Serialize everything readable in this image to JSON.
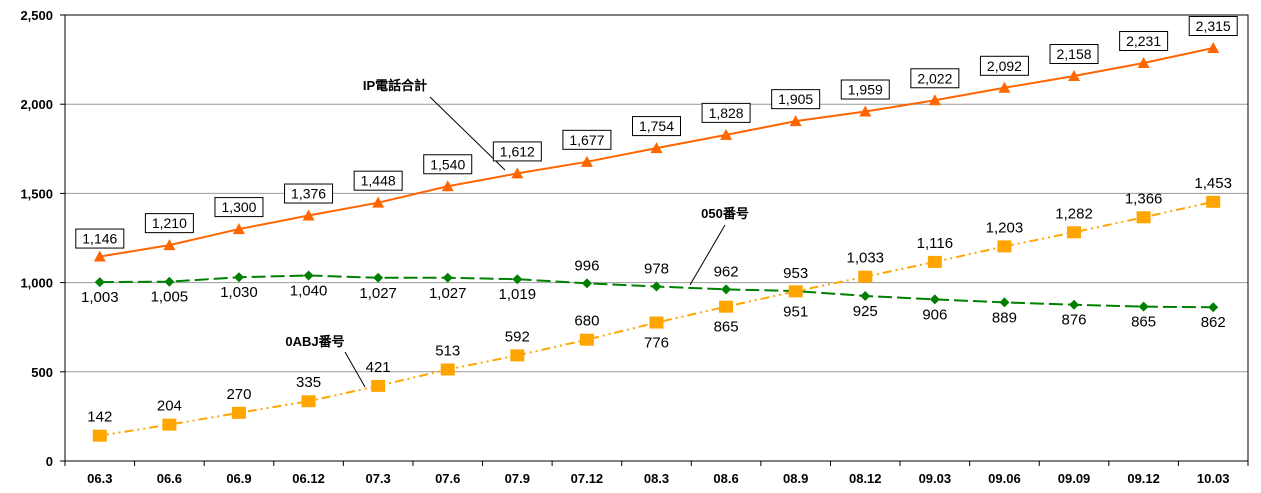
{
  "chart_data": {
    "type": "line",
    "categories": [
      "06.3",
      "06.6",
      "06.9",
      "06.12",
      "07.3",
      "07.6",
      "07.9",
      "07.12",
      "08.3",
      "08.6",
      "08.9",
      "08.12",
      "09.03",
      "09.06",
      "09.09",
      "09.12",
      "10.03"
    ],
    "ylim": [
      0,
      2500
    ],
    "yticks": [
      0,
      500,
      1000,
      1500,
      2000,
      2500
    ],
    "ytick_labels": [
      "0",
      "500",
      "1,000",
      "1,500",
      "2,000",
      "2,500"
    ],
    "grid": true,
    "series": [
      {
        "name": "IP電話合計",
        "color": "#ff6600",
        "marker": "triangle",
        "line_style": "solid",
        "values": [
          1146,
          1210,
          1300,
          1376,
          1448,
          1540,
          1612,
          1677,
          1754,
          1828,
          1905,
          1959,
          2022,
          2092,
          2158,
          2231,
          2315
        ],
        "labels": [
          "1,146",
          "1,210",
          "1,300",
          "1,376",
          "1,448",
          "1,540",
          "1,612",
          "1,677",
          "1,754",
          "1,828",
          "1,905",
          "1,959",
          "2,022",
          "2,092",
          "2,158",
          "2,231",
          "2,315"
        ]
      },
      {
        "name": "050番号",
        "color": "#008000",
        "marker": "diamond",
        "line_style": "dashed",
        "values": [
          1003,
          1005,
          1030,
          1040,
          1027,
          1027,
          1019,
          996,
          978,
          962,
          953,
          925,
          906,
          889,
          876,
          865,
          862
        ],
        "labels": [
          "1,003",
          "1,005",
          "1,030",
          "1,040",
          "1,027",
          "1,027",
          "1,019",
          "996",
          "978",
          "962",
          "953",
          "925",
          "906",
          "889",
          "876",
          "865",
          "862"
        ]
      },
      {
        "name": "0ABJ番号",
        "color": "#ffa500",
        "marker": "square",
        "line_style": "dashdotdot",
        "values": [
          142,
          204,
          270,
          335,
          421,
          513,
          592,
          680,
          776,
          865,
          951,
          1033,
          1116,
          1203,
          1282,
          1366,
          1453
        ],
        "labels": [
          "142",
          "204",
          "270",
          "335",
          "421",
          "513",
          "592",
          "680",
          "776",
          "865",
          "951",
          "1,033",
          "1,116",
          "1,203",
          "1,282",
          "1,366",
          "1,453"
        ]
      }
    ]
  }
}
